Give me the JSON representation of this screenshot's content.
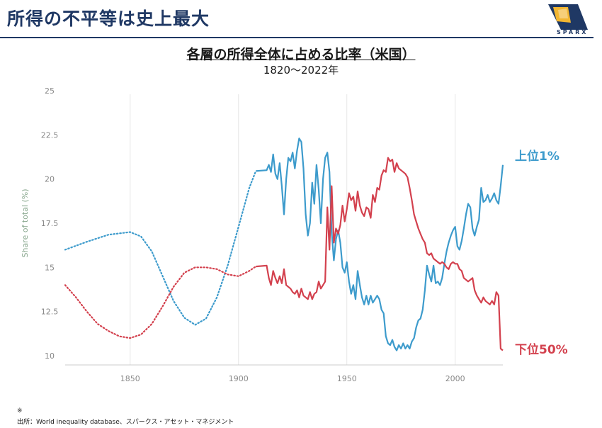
{
  "slide": {
    "title": "所得の不平等は史上最大",
    "logo_text": "SPARX"
  },
  "chart_data": {
    "type": "line",
    "title": "各層の所得全体に占める比率（米国）",
    "subtitle": "1820〜2022年",
    "xlabel": "",
    "ylabel": "Share of total (%)",
    "xlim": [
      1820,
      2022
    ],
    "ylim": [
      9.5,
      25
    ],
    "xticks": [
      1850,
      1900,
      1950,
      2000
    ],
    "yticks": [
      "10",
      "12.5",
      "15",
      "17.5",
      "20",
      "22.5",
      "25"
    ],
    "grid": "vertical",
    "series": [
      {
        "name": "上位1%",
        "color": "#3d9bcc",
        "estimated": [
          [
            1820,
            16.0
          ],
          [
            1830,
            16.45
          ],
          [
            1840,
            16.85
          ],
          [
            1850,
            17.0
          ],
          [
            1855,
            16.75
          ],
          [
            1860,
            15.9
          ],
          [
            1865,
            14.5
          ],
          [
            1870,
            13.1
          ],
          [
            1875,
            12.15
          ],
          [
            1880,
            11.75
          ],
          [
            1885,
            12.1
          ],
          [
            1890,
            13.3
          ],
          [
            1895,
            15.1
          ],
          [
            1900,
            17.3
          ],
          [
            1905,
            19.5
          ],
          [
            1908,
            20.45
          ]
        ],
        "observed": [
          [
            1908,
            20.45
          ],
          [
            1913,
            20.5
          ],
          [
            1914,
            20.8
          ],
          [
            1915,
            20.4
          ],
          [
            1916,
            21.4
          ],
          [
            1917,
            20.3
          ],
          [
            1918,
            20.0
          ],
          [
            1919,
            20.9
          ],
          [
            1920,
            19.6
          ],
          [
            1921,
            18.0
          ],
          [
            1922,
            20.0
          ],
          [
            1923,
            21.2
          ],
          [
            1924,
            21.0
          ],
          [
            1925,
            21.5
          ],
          [
            1926,
            20.6
          ],
          [
            1927,
            21.6
          ],
          [
            1928,
            22.3
          ],
          [
            1929,
            22.1
          ],
          [
            1930,
            20.6
          ],
          [
            1931,
            18.0
          ],
          [
            1932,
            16.8
          ],
          [
            1933,
            17.5
          ],
          [
            1934,
            19.8
          ],
          [
            1935,
            18.6
          ],
          [
            1936,
            20.8
          ],
          [
            1937,
            19.4
          ],
          [
            1938,
            17.5
          ],
          [
            1939,
            20.0
          ],
          [
            1940,
            21.2
          ],
          [
            1941,
            21.5
          ],
          [
            1942,
            20.4
          ],
          [
            1943,
            17.0
          ],
          [
            1944,
            15.4
          ],
          [
            1945,
            16.6
          ],
          [
            1946,
            17.1
          ],
          [
            1947,
            16.4
          ],
          [
            1948,
            15.0
          ],
          [
            1949,
            14.7
          ],
          [
            1950,
            15.3
          ],
          [
            1951,
            14.2
          ],
          [
            1952,
            13.5
          ],
          [
            1953,
            14.0
          ],
          [
            1954,
            13.2
          ],
          [
            1955,
            14.8
          ],
          [
            1956,
            14.0
          ],
          [
            1957,
            13.3
          ],
          [
            1958,
            12.9
          ],
          [
            1959,
            13.4
          ],
          [
            1960,
            12.9
          ],
          [
            1961,
            13.4
          ],
          [
            1962,
            13.0
          ],
          [
            1963,
            13.2
          ],
          [
            1964,
            13.4
          ],
          [
            1965,
            13.2
          ],
          [
            1966,
            12.6
          ],
          [
            1967,
            12.4
          ],
          [
            1968,
            11.1
          ],
          [
            1969,
            10.7
          ],
          [
            1970,
            10.6
          ],
          [
            1971,
            10.9
          ],
          [
            1972,
            10.5
          ],
          [
            1973,
            10.3
          ],
          [
            1974,
            10.6
          ],
          [
            1975,
            10.4
          ],
          [
            1976,
            10.7
          ],
          [
            1977,
            10.4
          ],
          [
            1978,
            10.6
          ],
          [
            1979,
            10.4
          ],
          [
            1980,
            10.8
          ],
          [
            1981,
            11.0
          ],
          [
            1982,
            11.6
          ],
          [
            1983,
            12.0
          ],
          [
            1984,
            12.1
          ],
          [
            1985,
            12.6
          ],
          [
            1986,
            13.7
          ],
          [
            1987,
            15.1
          ],
          [
            1988,
            14.6
          ],
          [
            1989,
            14.2
          ],
          [
            1990,
            15.1
          ],
          [
            1991,
            14.1
          ],
          [
            1992,
            14.2
          ],
          [
            1993,
            14.0
          ],
          [
            1994,
            14.4
          ],
          [
            1995,
            15.2
          ],
          [
            1996,
            15.9
          ],
          [
            1997,
            16.4
          ],
          [
            1998,
            16.8
          ],
          [
            1999,
            17.1
          ],
          [
            2000,
            17.3
          ],
          [
            2001,
            16.2
          ],
          [
            2002,
            16.0
          ],
          [
            2003,
            16.5
          ],
          [
            2004,
            17.2
          ],
          [
            2005,
            18.0
          ],
          [
            2006,
            18.6
          ],
          [
            2007,
            18.4
          ],
          [
            2008,
            17.2
          ],
          [
            2009,
            16.8
          ],
          [
            2010,
            17.3
          ],
          [
            2011,
            17.7
          ],
          [
            2012,
            19.5
          ],
          [
            2013,
            18.7
          ],
          [
            2014,
            18.8
          ],
          [
            2015,
            19.1
          ],
          [
            2016,
            18.7
          ],
          [
            2017,
            18.9
          ],
          [
            2018,
            19.2
          ],
          [
            2019,
            18.8
          ],
          [
            2020,
            18.6
          ],
          [
            2021,
            19.6
          ],
          [
            2022,
            20.8
          ]
        ]
      },
      {
        "name": "下位50%",
        "color": "#d3414e",
        "estimated": [
          [
            1820,
            14.0
          ],
          [
            1825,
            13.3
          ],
          [
            1830,
            12.5
          ],
          [
            1835,
            11.8
          ],
          [
            1840,
            11.4
          ],
          [
            1845,
            11.1
          ],
          [
            1850,
            11.0
          ],
          [
            1855,
            11.2
          ],
          [
            1860,
            11.8
          ],
          [
            1865,
            12.8
          ],
          [
            1870,
            13.9
          ],
          [
            1875,
            14.7
          ],
          [
            1880,
            15.0
          ],
          [
            1885,
            15.0
          ],
          [
            1890,
            14.9
          ],
          [
            1895,
            14.6
          ],
          [
            1900,
            14.5
          ],
          [
            1905,
            14.8
          ],
          [
            1908,
            15.05
          ]
        ],
        "observed": [
          [
            1908,
            15.05
          ],
          [
            1913,
            15.1
          ],
          [
            1914,
            14.4
          ],
          [
            1915,
            14.0
          ],
          [
            1916,
            14.8
          ],
          [
            1917,
            14.4
          ],
          [
            1918,
            14.1
          ],
          [
            1919,
            14.5
          ],
          [
            1920,
            14.1
          ],
          [
            1921,
            14.9
          ],
          [
            1922,
            14.0
          ],
          [
            1923,
            13.9
          ],
          [
            1924,
            13.8
          ],
          [
            1925,
            13.6
          ],
          [
            1926,
            13.5
          ],
          [
            1927,
            13.7
          ],
          [
            1928,
            13.3
          ],
          [
            1929,
            13.8
          ],
          [
            1930,
            13.4
          ],
          [
            1931,
            13.3
          ],
          [
            1932,
            13.2
          ],
          [
            1933,
            13.6
          ],
          [
            1934,
            13.2
          ],
          [
            1935,
            13.5
          ],
          [
            1936,
            13.6
          ],
          [
            1937,
            14.2
          ],
          [
            1938,
            13.8
          ],
          [
            1939,
            14.0
          ],
          [
            1940,
            14.2
          ],
          [
            1941,
            18.4
          ],
          [
            1942,
            16.0
          ],
          [
            1943,
            19.6
          ],
          [
            1944,
            16.4
          ],
          [
            1945,
            17.2
          ],
          [
            1946,
            16.9
          ],
          [
            1947,
            17.4
          ],
          [
            1948,
            18.5
          ],
          [
            1949,
            17.6
          ],
          [
            1950,
            18.3
          ],
          [
            1951,
            19.2
          ],
          [
            1952,
            18.8
          ],
          [
            1953,
            19.0
          ],
          [
            1954,
            18.2
          ],
          [
            1955,
            19.3
          ],
          [
            1956,
            18.5
          ],
          [
            1957,
            18.1
          ],
          [
            1958,
            17.9
          ],
          [
            1959,
            18.4
          ],
          [
            1960,
            18.3
          ],
          [
            1961,
            17.8
          ],
          [
            1962,
            19.1
          ],
          [
            1963,
            18.7
          ],
          [
            1964,
            19.5
          ],
          [
            1965,
            19.4
          ],
          [
            1966,
            20.2
          ],
          [
            1967,
            20.5
          ],
          [
            1968,
            20.4
          ],
          [
            1969,
            21.2
          ],
          [
            1970,
            21.0
          ],
          [
            1971,
            21.1
          ],
          [
            1972,
            20.4
          ],
          [
            1973,
            20.9
          ],
          [
            1974,
            20.6
          ],
          [
            1975,
            20.5
          ],
          [
            1976,
            20.4
          ],
          [
            1977,
            20.3
          ],
          [
            1978,
            20.1
          ],
          [
            1979,
            19.5
          ],
          [
            1980,
            18.8
          ],
          [
            1981,
            18.0
          ],
          [
            1982,
            17.6
          ],
          [
            1983,
            17.2
          ],
          [
            1984,
            16.9
          ],
          [
            1985,
            16.6
          ],
          [
            1986,
            16.4
          ],
          [
            1987,
            15.8
          ],
          [
            1988,
            15.7
          ],
          [
            1989,
            15.8
          ],
          [
            1990,
            15.5
          ],
          [
            1991,
            15.4
          ],
          [
            1992,
            15.3
          ],
          [
            1993,
            15.2
          ],
          [
            1994,
            15.3
          ],
          [
            1995,
            15.2
          ],
          [
            1996,
            15.0
          ],
          [
            1997,
            14.9
          ],
          [
            1998,
            15.2
          ],
          [
            1999,
            15.3
          ],
          [
            2000,
            15.2
          ],
          [
            2001,
            15.2
          ],
          [
            2002,
            14.9
          ],
          [
            2003,
            14.8
          ],
          [
            2004,
            14.4
          ],
          [
            2005,
            14.3
          ],
          [
            2006,
            14.2
          ],
          [
            2007,
            14.3
          ],
          [
            2008,
            14.4
          ],
          [
            2009,
            13.7
          ],
          [
            2010,
            13.4
          ],
          [
            2011,
            13.2
          ],
          [
            2012,
            13.0
          ],
          [
            2013,
            13.3
          ],
          [
            2014,
            13.1
          ],
          [
            2015,
            13.0
          ],
          [
            2016,
            12.9
          ],
          [
            2017,
            13.1
          ],
          [
            2018,
            12.9
          ],
          [
            2019,
            13.6
          ],
          [
            2020,
            13.4
          ],
          [
            2021,
            10.4
          ],
          [
            2022,
            10.3
          ]
        ]
      }
    ]
  },
  "footer": {
    "note_mark": "※",
    "source": "出所：World inequality database、スパークス・アセット・マネジメント"
  }
}
